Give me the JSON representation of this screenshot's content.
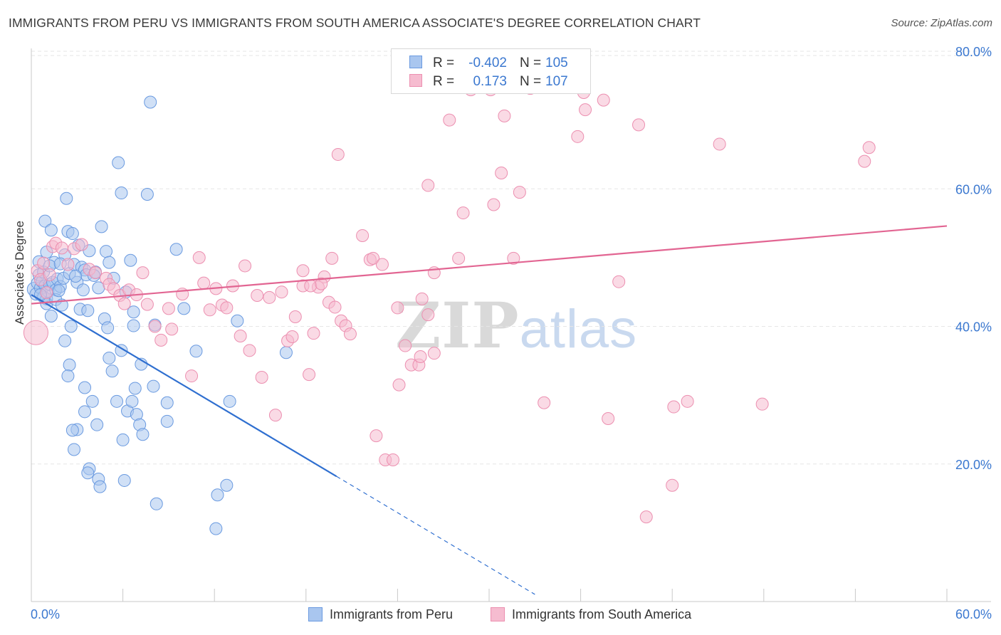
{
  "title": "IMMIGRANTS FROM PERU VS IMMIGRANTS FROM SOUTH AMERICA ASSOCIATE'S DEGREE CORRELATION CHART",
  "source": "Source: ZipAtlas.com",
  "watermark": {
    "zip": "ZIP",
    "atlas": "atlas"
  },
  "stats": {
    "peru": {
      "r_label": "R =",
      "r_value": "-0.402",
      "n_label": "N =",
      "n_value": "105"
    },
    "south_america": {
      "r_label": "R =",
      "r_value": "0.173",
      "n_label": "N =",
      "n_value": "107"
    }
  },
  "legend": {
    "peru": "Immigrants from Peru",
    "south_america": "Immigrants from South America"
  },
  "colors": {
    "peru_fill": "#a9c6ef",
    "peru_stroke": "#6a9ae0",
    "peru_line": "#2f6fd0",
    "sa_fill": "#f6bcd0",
    "sa_stroke": "#ec8fb0",
    "sa_line": "#e26592",
    "tick_label": "#3b78d0",
    "grid": "#e6e6e6"
  },
  "chart_data": {
    "type": "scatter",
    "title": "IMMIGRANTS FROM PERU VS IMMIGRANTS FROM SOUTH AMERICA ASSOCIATE'S DEGREE CORRELATION CHART",
    "xlabel": "",
    "ylabel": "Associate's Degree",
    "xlim": [
      0,
      60
    ],
    "ylim": [
      0,
      80
    ],
    "x_tick_labels": [
      "0.0%",
      "60.0%"
    ],
    "y_ticks": [
      20,
      40,
      60,
      80
    ],
    "y_tick_labels": [
      "20.0%",
      "40.0%",
      "60.0%",
      "80.0%"
    ],
    "series": [
      {
        "name": "Immigrants from Peru",
        "trend": {
          "x0": 0,
          "y0": 44.6,
          "x1": 20,
          "y1": 18.2,
          "dash_to_x": 33
        },
        "points": [
          [
            0.2,
            45.4
          ],
          [
            0.3,
            44.7
          ],
          [
            0.4,
            46.3
          ],
          [
            0.5,
            47.5
          ],
          [
            0.6,
            45.6
          ],
          [
            0.7,
            46.5
          ],
          [
            0.8,
            44.3
          ],
          [
            0.9,
            45.9
          ],
          [
            1.0,
            44.0
          ],
          [
            1.1,
            45.1
          ],
          [
            1.2,
            46.1
          ],
          [
            1.0,
            50.8
          ],
          [
            0.9,
            55.3
          ],
          [
            1.3,
            54.0
          ],
          [
            1.5,
            49.3
          ],
          [
            1.4,
            46.4
          ],
          [
            1.6,
            45.3
          ],
          [
            1.7,
            46.9
          ],
          [
            1.9,
            45.8
          ],
          [
            2.1,
            47.0
          ],
          [
            2.2,
            50.4
          ],
          [
            2.4,
            53.8
          ],
          [
            2.5,
            47.7
          ],
          [
            2.7,
            53.5
          ],
          [
            2.8,
            49.0
          ],
          [
            3.0,
            46.4
          ],
          [
            3.1,
            51.8
          ],
          [
            3.3,
            48.6
          ],
          [
            3.5,
            48.2
          ],
          [
            3.6,
            47.5
          ],
          [
            3.8,
            51.0
          ],
          [
            4.2,
            47.9
          ],
          [
            4.6,
            54.5
          ],
          [
            4.9,
            50.9
          ],
          [
            5.1,
            49.3
          ],
          [
            1.0,
            43.3
          ],
          [
            1.3,
            41.5
          ],
          [
            1.6,
            43.9
          ],
          [
            2.0,
            43.1
          ],
          [
            2.6,
            40.0
          ],
          [
            3.2,
            42.5
          ],
          [
            3.7,
            42.3
          ],
          [
            4.4,
            45.6
          ],
          [
            4.8,
            41.1
          ],
          [
            5.0,
            39.8
          ],
          [
            2.3,
            58.6
          ],
          [
            5.7,
            63.8
          ],
          [
            5.9,
            59.4
          ],
          [
            7.6,
            59.2
          ],
          [
            7.8,
            72.6
          ],
          [
            9.5,
            51.2
          ],
          [
            6.5,
            49.6
          ],
          [
            6.7,
            42.1
          ],
          [
            6.7,
            40.1
          ],
          [
            8.1,
            40.2
          ],
          [
            10.0,
            42.6
          ],
          [
            2.2,
            37.9
          ],
          [
            2.5,
            34.4
          ],
          [
            2.4,
            32.8
          ],
          [
            3.5,
            31.1
          ],
          [
            3.5,
            27.6
          ],
          [
            4.0,
            29.1
          ],
          [
            4.3,
            25.7
          ],
          [
            3.0,
            25.0
          ],
          [
            2.7,
            24.9
          ],
          [
            2.8,
            22.1
          ],
          [
            3.8,
            19.3
          ],
          [
            3.7,
            18.7
          ],
          [
            4.4,
            17.8
          ],
          [
            4.5,
            16.7
          ],
          [
            5.1,
            35.4
          ],
          [
            5.3,
            33.5
          ],
          [
            5.6,
            29.1
          ],
          [
            5.9,
            36.5
          ],
          [
            6.0,
            23.5
          ],
          [
            6.3,
            27.7
          ],
          [
            6.6,
            29.1
          ],
          [
            6.8,
            31.0
          ],
          [
            6.9,
            27.2
          ],
          [
            7.1,
            25.7
          ],
          [
            7.2,
            34.5
          ],
          [
            7.3,
            24.3
          ],
          [
            8.0,
            31.3
          ],
          [
            8.2,
            14.2
          ],
          [
            8.9,
            28.9
          ],
          [
            8.9,
            26.2
          ],
          [
            6.1,
            17.6
          ],
          [
            10.8,
            36.4
          ],
          [
            12.2,
            15.5
          ],
          [
            12.8,
            16.9
          ],
          [
            13.0,
            29.1
          ],
          [
            12.1,
            10.6
          ],
          [
            13.5,
            40.8
          ],
          [
            16.7,
            36.2
          ],
          [
            0.5,
            49.4
          ],
          [
            0.8,
            47.9
          ],
          [
            1.2,
            48.8
          ],
          [
            1.8,
            45.2
          ],
          [
            2.9,
            47.3
          ],
          [
            3.4,
            45.3
          ],
          [
            4.1,
            47.4
          ],
          [
            5.4,
            47.0
          ],
          [
            6.2,
            45.0
          ],
          [
            0.6,
            44.6
          ],
          [
            1.9,
            49.1
          ]
        ]
      },
      {
        "name": "Immigrants from South America",
        "trend": {
          "x0": 0,
          "y0": 43.3,
          "x1": 60,
          "y1": 54.6
        },
        "points": [
          [
            0.3,
            39.1
          ],
          [
            0.4,
            48.1
          ],
          [
            0.6,
            46.8
          ],
          [
            0.8,
            49.2
          ],
          [
            1.0,
            44.9
          ],
          [
            1.2,
            47.5
          ],
          [
            1.4,
            51.6
          ],
          [
            1.6,
            52.1
          ],
          [
            2.0,
            51.4
          ],
          [
            2.4,
            49.0
          ],
          [
            2.8,
            51.3
          ],
          [
            3.3,
            51.9
          ],
          [
            3.8,
            48.3
          ],
          [
            4.2,
            47.8
          ],
          [
            4.9,
            47.0
          ],
          [
            5.1,
            46.1
          ],
          [
            5.4,
            45.5
          ],
          [
            5.8,
            44.5
          ],
          [
            6.1,
            43.3
          ],
          [
            6.4,
            45.3
          ],
          [
            6.9,
            44.6
          ],
          [
            7.3,
            47.8
          ],
          [
            7.6,
            43.2
          ],
          [
            8.1,
            40.0
          ],
          [
            8.5,
            38.0
          ],
          [
            9.0,
            42.6
          ],
          [
            9.2,
            39.6
          ],
          [
            9.9,
            44.7
          ],
          [
            10.5,
            32.8
          ],
          [
            11.0,
            50.0
          ],
          [
            11.3,
            46.3
          ],
          [
            11.7,
            42.4
          ],
          [
            12.1,
            45.5
          ],
          [
            12.5,
            43.1
          ],
          [
            12.8,
            42.7
          ],
          [
            13.2,
            45.9
          ],
          [
            13.7,
            38.6
          ],
          [
            14.0,
            48.8
          ],
          [
            14.3,
            36.5
          ],
          [
            14.8,
            44.5
          ],
          [
            15.1,
            32.6
          ],
          [
            15.6,
            44.2
          ],
          [
            16.0,
            27.1
          ],
          [
            16.4,
            45.0
          ],
          [
            16.8,
            37.9
          ],
          [
            17.1,
            38.5
          ],
          [
            17.3,
            41.4
          ],
          [
            17.8,
            45.9
          ],
          [
            18.2,
            33.0
          ],
          [
            18.5,
            39.0
          ],
          [
            18.8,
            45.7
          ],
          [
            19.2,
            47.2
          ],
          [
            19.5,
            43.5
          ],
          [
            19.9,
            42.8
          ],
          [
            20.3,
            40.8
          ],
          [
            20.6,
            40.1
          ],
          [
            20.9,
            38.9
          ],
          [
            21.7,
            53.2
          ],
          [
            22.2,
            49.7
          ],
          [
            22.4,
            49.9
          ],
          [
            22.6,
            24.1
          ],
          [
            23.2,
            20.6
          ],
          [
            23.7,
            20.6
          ],
          [
            24.0,
            42.7
          ],
          [
            24.5,
            37.2
          ],
          [
            24.9,
            34.4
          ],
          [
            25.4,
            34.4
          ],
          [
            25.5,
            35.6
          ],
          [
            26.0,
            41.7
          ],
          [
            26.4,
            36.1
          ],
          [
            17.8,
            48.1
          ],
          [
            18.3,
            45.9
          ],
          [
            19.0,
            46.2
          ],
          [
            19.7,
            49.9
          ],
          [
            20.1,
            65.0
          ],
          [
            23.0,
            49.0
          ],
          [
            24.1,
            31.5
          ],
          [
            25.6,
            44.0
          ],
          [
            26.0,
            60.5
          ],
          [
            26.4,
            47.8
          ],
          [
            27.4,
            70.0
          ],
          [
            28.0,
            49.9
          ],
          [
            28.3,
            56.5
          ],
          [
            28.8,
            74.4
          ],
          [
            30.1,
            74.4
          ],
          [
            30.3,
            57.7
          ],
          [
            30.8,
            62.3
          ],
          [
            31.0,
            70.6
          ],
          [
            31.6,
            49.9
          ],
          [
            32.0,
            59.5
          ],
          [
            32.7,
            74.6
          ],
          [
            33.6,
            28.9
          ],
          [
            35.8,
            67.6
          ],
          [
            36.2,
            74.0
          ],
          [
            36.3,
            71.5
          ],
          [
            37.5,
            72.9
          ],
          [
            37.8,
            26.6
          ],
          [
            38.5,
            46.5
          ],
          [
            39.8,
            69.3
          ],
          [
            40.3,
            12.3
          ],
          [
            42.0,
            16.9
          ],
          [
            42.1,
            28.3
          ],
          [
            43.0,
            29.1
          ],
          [
            45.1,
            66.5
          ],
          [
            47.9,
            28.7
          ],
          [
            54.6,
            64.0
          ],
          [
            54.9,
            66.0
          ]
        ]
      }
    ]
  }
}
